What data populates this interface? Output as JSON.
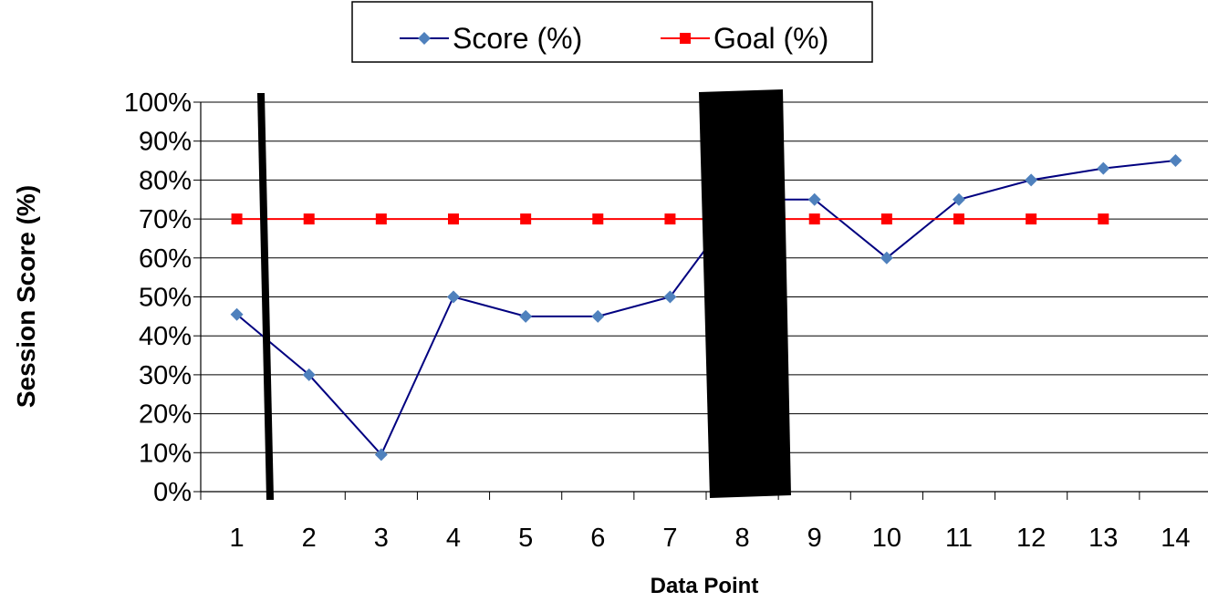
{
  "chart_data": {
    "type": "line",
    "xlabel": "Data Point",
    "ylabel": "Session Score (%)",
    "categories": [
      "1",
      "2",
      "3",
      "4",
      "5",
      "6",
      "7",
      "8",
      "9",
      "10",
      "11",
      "12",
      "13",
      "14"
    ],
    "ylim": [
      0,
      100
    ],
    "yticks": [
      "0%",
      "10%",
      "20%",
      "30%",
      "40%",
      "50%",
      "60%",
      "70%",
      "80%",
      "90%",
      "100%"
    ],
    "grid": "horizontal",
    "legend": "top-center",
    "series": [
      {
        "name": "Score (%)",
        "color": "#000080",
        "marker": "diamond",
        "marker_color": "#4F81BD",
        "values": [
          45.5,
          30,
          9.5,
          50,
          45,
          45,
          50,
          75,
          75,
          60,
          75,
          80,
          83,
          85
        ]
      },
      {
        "name": "Goal (%)",
        "color": "#FF0000",
        "marker": "square",
        "marker_color": "#FF0000",
        "values": [
          70,
          70,
          70,
          70,
          70,
          70,
          70,
          70,
          70,
          70,
          70,
          70,
          70,
          null
        ]
      }
    ]
  }
}
